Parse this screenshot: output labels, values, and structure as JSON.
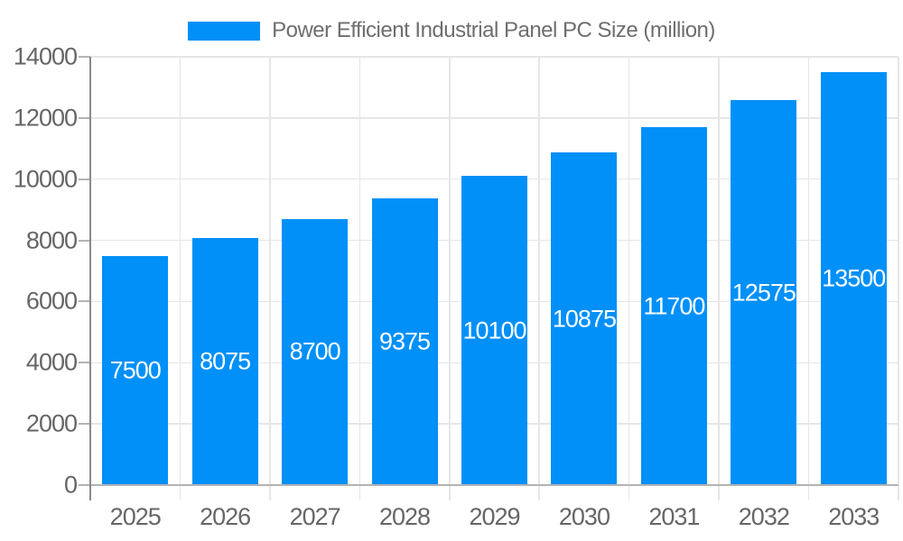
{
  "chart_data": {
    "type": "bar",
    "title": "Power Efficient Industrial Panel PC Size (million)",
    "categories": [
      "2025",
      "2026",
      "2027",
      "2028",
      "2029",
      "2030",
      "2031",
      "2032",
      "2033"
    ],
    "values": [
      7500,
      8075,
      8700,
      9375,
      10100,
      10875,
      11700,
      12575,
      13500
    ],
    "xlabel": "",
    "ylabel": "",
    "ylim": [
      0,
      14000
    ],
    "yticks": [
      0,
      2000,
      4000,
      6000,
      8000,
      10000,
      12000,
      14000
    ],
    "grid": true,
    "legend_position": "top-center",
    "bar_value_labels": "inside-center",
    "colors": {
      "bar": "#0090f8",
      "bar_label_text": "#ffffff",
      "axis_text": "#666666",
      "title_text": "#6e6e6e",
      "gridline": "#e6e6e6",
      "x_axis_line": "#b3b3b3",
      "y_axis_line": "#8a8a8a",
      "tick": "#b3b3b3",
      "background": "#ffffff"
    }
  }
}
